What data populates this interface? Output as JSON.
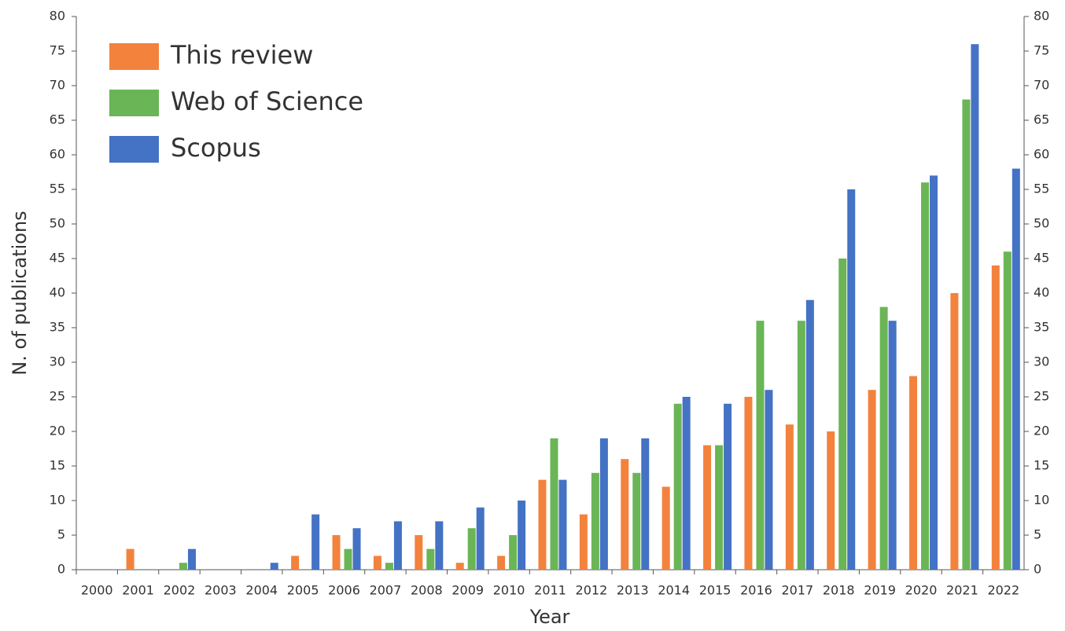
{
  "chart_data": {
    "type": "bar",
    "x_label": "Year",
    "y_label": "N. of publications",
    "categories": [
      "2000",
      "2001",
      "2002",
      "2003",
      "2004",
      "2005",
      "2006",
      "2007",
      "2008",
      "2009",
      "2010",
      "2011",
      "2012",
      "2013",
      "2014",
      "2015",
      "2016",
      "2017",
      "2018",
      "2019",
      "2020",
      "2021",
      "2022"
    ],
    "series": [
      {
        "name": "This review",
        "color": "#f3823d",
        "values": [
          0,
          3,
          0,
          0,
          0,
          2,
          5,
          2,
          5,
          1,
          2,
          13,
          8,
          16,
          12,
          18,
          25,
          21,
          20,
          26,
          28,
          40,
          44
        ]
      },
      {
        "name": "Web of Science",
        "color": "#6ab556",
        "values": [
          0,
          0,
          1,
          0,
          0,
          0,
          3,
          1,
          3,
          6,
          5,
          19,
          14,
          14,
          24,
          18,
          36,
          36,
          45,
          38,
          56,
          68,
          46
        ]
      },
      {
        "name": "Scopus",
        "color": "#4472c4",
        "values": [
          0,
          0,
          3,
          0,
          1,
          8,
          6,
          7,
          7,
          9,
          10,
          13,
          19,
          19,
          25,
          24,
          26,
          39,
          55,
          36,
          57,
          76,
          58
        ]
      }
    ],
    "ylim": [
      0,
      80
    ],
    "yticks": [
      0,
      5,
      10,
      15,
      20,
      25,
      30,
      35,
      40,
      45,
      50,
      55,
      60,
      65,
      70,
      75,
      80
    ],
    "y2lim": [
      0,
      80
    ],
    "y2ticks": [
      0,
      5,
      10,
      15,
      20,
      25,
      30,
      35,
      40,
      45,
      50,
      55,
      60,
      65,
      70,
      75,
      80
    ],
    "grid": false,
    "legend": "upper left"
  }
}
